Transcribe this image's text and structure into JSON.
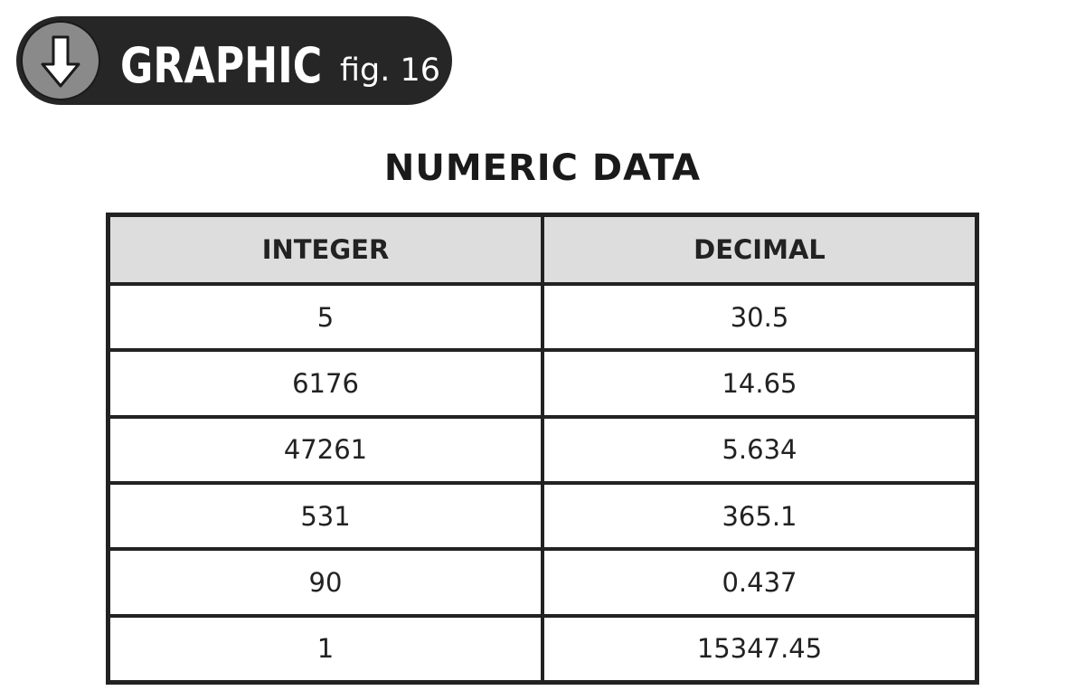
{
  "badge": {
    "title": "GRAPHIC",
    "fig": "fig. 16",
    "icon": "arrow-down-circle-icon"
  },
  "table": {
    "title": "NUMERIC DATA",
    "headers": [
      "INTEGER",
      "DECIMAL"
    ],
    "rows": [
      [
        "5",
        "30.5"
      ],
      [
        "6176",
        "14.65"
      ],
      [
        "47261",
        "5.634"
      ],
      [
        "531",
        "365.1"
      ],
      [
        "90",
        "0.437"
      ],
      [
        "1",
        "15347.45"
      ]
    ]
  },
  "colors": {
    "badge_bg": "#262626",
    "icon_bg": "#8a8a8a",
    "header_bg": "#dddddd",
    "border": "#222222"
  }
}
